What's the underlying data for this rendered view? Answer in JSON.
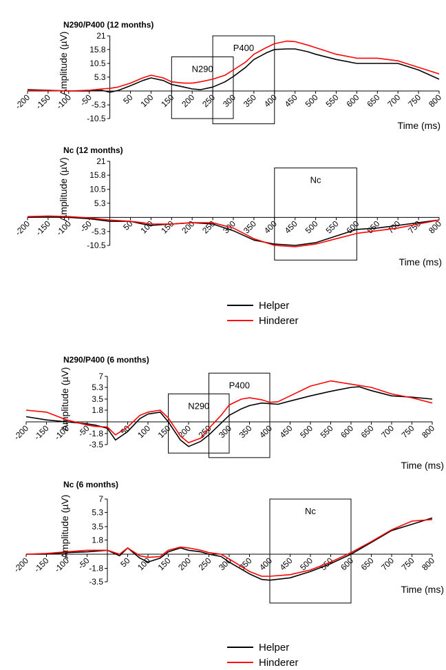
{
  "colors": {
    "helper": "#000000",
    "hinderer": "#ff0000",
    "axis": "#000000",
    "box": "#000000"
  },
  "legends": [
    {
      "items": [
        {
          "name": "Helper",
          "color": "#000000"
        },
        {
          "name": "Hinderer",
          "color": "#ff0000"
        }
      ]
    },
    {
      "items": [
        {
          "name": "Helper",
          "color": "#000000"
        },
        {
          "name": "Hinderer",
          "color": "#ff0000"
        }
      ]
    }
  ],
  "chart_data": [
    {
      "type": "line",
      "title": "N290/P400 (12 months)",
      "xlabel": "Time (ms)",
      "ylabel": "Amplitude (µV)",
      "xlim": [
        -200,
        800
      ],
      "ylim": [
        -10.5,
        21
      ],
      "xticks": [
        "-200",
        "-150",
        "-100",
        "-50",
        "50",
        "100",
        "150",
        "200",
        "250",
        "300",
        "350",
        "400",
        "450",
        "500",
        "550",
        "600",
        "650",
        "700",
        "750",
        "800"
      ],
      "xtick_values": [
        -200,
        -150,
        -100,
        -50,
        50,
        100,
        150,
        200,
        250,
        300,
        350,
        400,
        450,
        500,
        550,
        600,
        650,
        700,
        750,
        800
      ],
      "yticks": [
        "21",
        "15.8",
        "10.5",
        "5.3",
        "-5.3",
        "-10.5"
      ],
      "ytick_values": [
        21,
        15.8,
        10.5,
        5.3,
        -5.3,
        -10.5
      ],
      "windows": [
        {
          "label": "N290",
          "x": [
            150,
            300
          ],
          "y": [
            -10.5,
            13
          ]
        },
        {
          "label": "P400",
          "x": [
            250,
            400
          ],
          "y": [
            -12.5,
            21
          ]
        }
      ],
      "series": [
        {
          "name": "Helper",
          "x": [
            -200,
            -150,
            -100,
            -50,
            -20,
            0,
            20,
            50,
            80,
            100,
            130,
            150,
            180,
            200,
            220,
            250,
            280,
            300,
            330,
            350,
            380,
            400,
            430,
            450,
            480,
            500,
            550,
            600,
            650,
            700,
            750,
            800
          ],
          "y": [
            0.5,
            0.3,
            0,
            0,
            0.3,
            -0.5,
            0.2,
            2,
            4,
            5,
            4,
            2.5,
            1.5,
            0.8,
            0.5,
            1.5,
            3.5,
            5.5,
            9,
            12,
            14.5,
            15.8,
            16,
            16,
            15,
            14,
            12,
            10.5,
            10.5,
            10.5,
            8,
            4.5
          ]
        },
        {
          "name": "Hinderer",
          "x": [
            -200,
            -150,
            -100,
            -50,
            -20,
            0,
            20,
            50,
            80,
            100,
            130,
            150,
            180,
            200,
            220,
            250,
            280,
            300,
            330,
            350,
            380,
            400,
            430,
            450,
            480,
            500,
            550,
            600,
            650,
            700,
            750,
            800
          ],
          "y": [
            0.3,
            0.2,
            0,
            0.3,
            0.8,
            1,
            1.5,
            3,
            5,
            6,
            5,
            3.5,
            3,
            3,
            3.5,
            4.5,
            6,
            8,
            11,
            14,
            16.5,
            18,
            19,
            18.8,
            17.5,
            16.5,
            14,
            12.5,
            12.5,
            11.5,
            9,
            6.5
          ]
        }
      ]
    },
    {
      "type": "line",
      "title": "Nc (12 months)",
      "xlabel": "Time (ms)",
      "ylabel": "Amplitude (µV)",
      "xlim": [
        -200,
        800
      ],
      "ylim": [
        -10.5,
        21
      ],
      "xticks": [
        "-200",
        "-150",
        "-100",
        "-50",
        "50",
        "100",
        "150",
        "200",
        "250",
        "300",
        "350",
        "400",
        "450",
        "500",
        "550",
        "600",
        "650",
        "700",
        "750",
        "800"
      ],
      "xtick_values": [
        -200,
        -150,
        -100,
        -50,
        50,
        100,
        150,
        200,
        250,
        300,
        350,
        400,
        450,
        500,
        550,
        600,
        650,
        700,
        750,
        800
      ],
      "yticks": [
        "21",
        "15.8",
        "10.5",
        "5.3",
        "-5.3",
        "-10.5"
      ],
      "ytick_values": [
        21,
        15.8,
        10.5,
        5.3,
        -5.3,
        -10.5
      ],
      "windows": [
        {
          "label": "Nc",
          "x": [
            400,
            600
          ],
          "y": [
            -16,
            18.5
          ]
        }
      ],
      "series": [
        {
          "name": "Helper",
          "x": [
            -200,
            -150,
            -100,
            -50,
            0,
            50,
            80,
            100,
            150,
            200,
            250,
            300,
            350,
            400,
            450,
            500,
            550,
            600,
            650,
            700,
            750,
            800
          ],
          "y": [
            0,
            0.2,
            0,
            -0.5,
            -1.5,
            -1.5,
            -2.5,
            -3,
            -2.5,
            -2,
            -2.5,
            -5,
            -8.5,
            -10,
            -10.5,
            -9.5,
            -7,
            -4.5,
            -4,
            -3,
            -2,
            -1
          ]
        },
        {
          "name": "Hinderer",
          "x": [
            -200,
            -150,
            -100,
            -50,
            0,
            50,
            80,
            100,
            150,
            200,
            250,
            300,
            350,
            400,
            450,
            500,
            550,
            600,
            650,
            700,
            750,
            800
          ],
          "y": [
            0.3,
            0.5,
            0.3,
            -0.2,
            -1,
            -1.5,
            -2,
            -2.5,
            -2.5,
            -2,
            -2,
            -4,
            -8,
            -10.5,
            -11,
            -10,
            -8,
            -6,
            -5,
            -4,
            -2.5,
            -1
          ]
        }
      ]
    },
    {
      "type": "line",
      "title": "N290/P400 (6 months)",
      "xlabel": "Time (ms)",
      "ylabel": "Amplitude (µV)",
      "xlim": [
        -200,
        800
      ],
      "ylim": [
        -3.5,
        7
      ],
      "xticks": [
        "-200",
        "-150",
        "-100",
        "-50",
        "50",
        "100",
        "150",
        "200",
        "250",
        "300",
        "350",
        "400",
        "450",
        "500",
        "550",
        "600",
        "650",
        "700",
        "750",
        "800"
      ],
      "xtick_values": [
        -200,
        -150,
        -100,
        -50,
        50,
        100,
        150,
        200,
        250,
        300,
        350,
        400,
        450,
        500,
        550,
        600,
        650,
        700,
        750,
        800
      ],
      "yticks": [
        "7",
        "5.3",
        "3.5",
        "1.8",
        "-1.8",
        "-3.5"
      ],
      "ytick_values": [
        7,
        5.3,
        3.5,
        1.8,
        -1.8,
        -3.5
      ],
      "windows": [
        {
          "label": "N290",
          "x": [
            150,
            300
          ],
          "y": [
            -4.8,
            4.3
          ]
        },
        {
          "label": "P400",
          "x": [
            250,
            400
          ],
          "y": [
            -5.5,
            7.5
          ]
        }
      ],
      "series": [
        {
          "name": "Helper",
          "x": [
            -200,
            -150,
            -100,
            -50,
            -30,
            0,
            20,
            50,
            80,
            100,
            130,
            150,
            180,
            200,
            230,
            250,
            280,
            300,
            330,
            350,
            380,
            400,
            420,
            450,
            500,
            550,
            600,
            620,
            650,
            700,
            750,
            800
          ],
          "y": [
            0.8,
            0.3,
            0,
            -0.3,
            -0.5,
            -1,
            -2.8,
            -1.5,
            0.5,
            1.2,
            1.5,
            0,
            -2.8,
            -3.8,
            -3,
            -2,
            -0.2,
            1,
            2,
            2.5,
            2.9,
            2.8,
            2.7,
            3.2,
            4,
            4.7,
            5.3,
            5.4,
            4.8,
            4,
            3.8,
            3.5
          ]
        },
        {
          "name": "Hinderer",
          "x": [
            -200,
            -150,
            -100,
            -50,
            -30,
            0,
            20,
            50,
            80,
            100,
            130,
            150,
            180,
            200,
            230,
            250,
            280,
            300,
            330,
            350,
            380,
            400,
            420,
            450,
            500,
            550,
            600,
            620,
            650,
            700,
            750,
            800
          ],
          "y": [
            1.8,
            1.5,
            0.3,
            -0.5,
            -0.7,
            -0.8,
            -2,
            -0.8,
            1,
            1.5,
            1.8,
            0.6,
            -2.2,
            -3.2,
            -2.5,
            -1,
            1,
            2.6,
            3.5,
            3.7,
            3.4,
            3,
            3.1,
            4,
            5.5,
            6.3,
            5.8,
            5.6,
            5.3,
            4.3,
            3.7,
            2.9
          ]
        }
      ]
    },
    {
      "type": "line",
      "title": "Nc (6 months)",
      "xlabel": "Time (ms)",
      "ylabel": "Amplitude (µV)",
      "xlim": [
        -200,
        800
      ],
      "ylim": [
        -3.5,
        7
      ],
      "xticks": [
        "-200",
        "-150",
        "-100",
        "-50",
        "50",
        "100",
        "150",
        "200",
        "250",
        "300",
        "350",
        "400",
        "450",
        "500",
        "550",
        "600",
        "650",
        "700",
        "750",
        "800"
      ],
      "xtick_values": [
        -200,
        -150,
        -100,
        -50,
        50,
        100,
        150,
        200,
        250,
        300,
        350,
        400,
        450,
        500,
        550,
        600,
        650,
        700,
        750,
        800
      ],
      "yticks": [
        "7",
        "5.3",
        "3.5",
        "1.8",
        "-1.8",
        "-3.5"
      ],
      "ytick_values": [
        7,
        5.3,
        3.5,
        1.8,
        -1.8,
        -3.5
      ],
      "windows": [
        {
          "label": "Nc",
          "x": [
            400,
            600
          ],
          "y": [
            -6.2,
            7
          ]
        }
      ],
      "series": [
        {
          "name": "Helper",
          "x": [
            -200,
            -150,
            -100,
            -50,
            0,
            30,
            50,
            80,
            100,
            130,
            150,
            180,
            200,
            230,
            250,
            280,
            300,
            350,
            380,
            400,
            450,
            500,
            550,
            600,
            650,
            700,
            750,
            800
          ],
          "y": [
            0,
            0,
            0.2,
            0.3,
            0.5,
            -0.2,
            0.8,
            -0.5,
            -1,
            -0.5,
            0.3,
            0.8,
            0.5,
            0.3,
            0,
            -0.3,
            -1,
            -2.5,
            -3.2,
            -3.3,
            -3,
            -2.2,
            -1.2,
            0,
            1.5,
            3,
            3.8,
            4.6
          ]
        },
        {
          "name": "Hinderer",
          "x": [
            -200,
            -150,
            -100,
            -50,
            0,
            30,
            50,
            80,
            100,
            130,
            150,
            180,
            200,
            230,
            250,
            280,
            300,
            350,
            380,
            400,
            450,
            500,
            550,
            600,
            650,
            700,
            750,
            800
          ],
          "y": [
            0,
            0.1,
            0.3,
            0.5,
            0.5,
            0,
            0.8,
            -0.2,
            -0.4,
            -0.3,
            0.5,
            0.9,
            0.8,
            0.5,
            0.2,
            0,
            -0.6,
            -2.2,
            -2.8,
            -2.8,
            -2.6,
            -2,
            -1,
            0.2,
            1.6,
            3.1,
            4.2,
            4.4
          ]
        }
      ]
    }
  ]
}
